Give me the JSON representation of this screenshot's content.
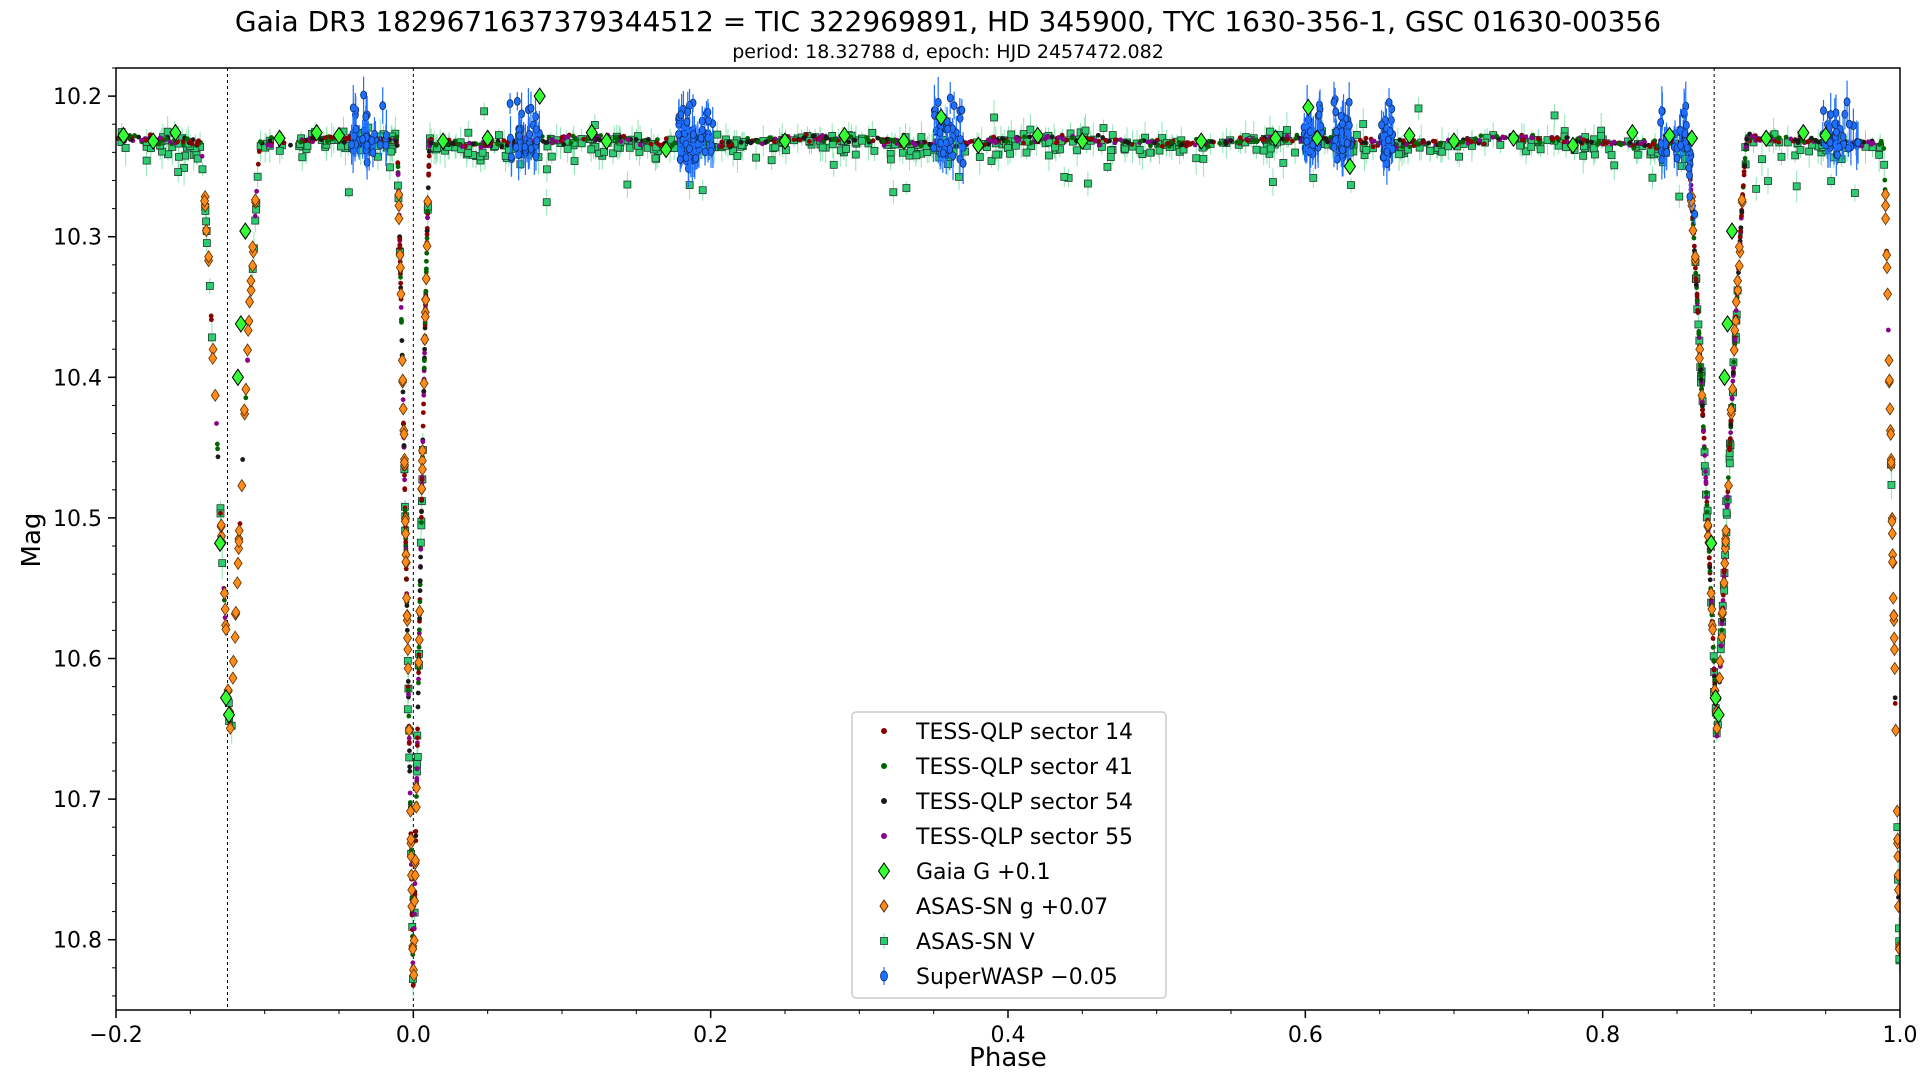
{
  "chart_data": {
    "type": "scatter",
    "title": "Gaia DR3 1829671637379344512 = TIC 322969891, HD 345900, TYC 1630-356-1, GSC 01630-00356",
    "subtitle": "period: 18.32788 d, epoch: HJD 2457472.082",
    "xlabel": "Phase",
    "ylabel": "Mag",
    "xlim": [
      -0.2,
      1.0
    ],
    "ylim": [
      10.85,
      10.18
    ],
    "y_inverted": true,
    "x_ticks": [
      -0.2,
      0.0,
      0.2,
      0.4,
      0.6,
      0.8,
      1.0
    ],
    "x_tick_labels": [
      "−0.2",
      "0.0",
      "0.2",
      "0.4",
      "0.6",
      "0.8",
      "1.0"
    ],
    "y_ticks": [
      10.2,
      10.3,
      10.4,
      10.5,
      10.6,
      10.7,
      10.8
    ],
    "y_tick_labels": [
      "10.2",
      "10.3",
      "10.4",
      "10.5",
      "10.6",
      "10.7",
      "10.8"
    ],
    "vertical_lines": [
      -0.125,
      0.0,
      0.875,
      1.0
    ],
    "grid": false,
    "legend_position": "bottom-center",
    "eclipses": {
      "baseline": 10.232,
      "primary": {
        "phase": 0.0,
        "depth_mag": 10.835,
        "half_width": 0.011
      },
      "secondary": {
        "phase": 0.877,
        "depth_mag": 10.66,
        "half_width": 0.02
      }
    },
    "series": [
      {
        "name": "TESS-QLP sector 14",
        "marker": "dot",
        "color": "#8b0000"
      },
      {
        "name": "TESS-QLP sector 41",
        "marker": "dot",
        "color": "#006400"
      },
      {
        "name": "TESS-QLP sector 54",
        "marker": "dot",
        "color": "#1a1a1a"
      },
      {
        "name": "TESS-QLP sector 55",
        "marker": "dot",
        "color": "#8b008b"
      },
      {
        "name": "Gaia G +0.1",
        "marker": "diamond",
        "color": "#33ff33",
        "points": [
          [
            -0.195,
            10.228
          ],
          [
            -0.175,
            10.232
          ],
          [
            -0.16,
            10.226
          ],
          [
            -0.13,
            10.518
          ],
          [
            -0.126,
            10.628
          ],
          [
            -0.124,
            10.64
          ],
          [
            -0.118,
            10.4
          ],
          [
            -0.116,
            10.362
          ],
          [
            -0.113,
            10.296
          ],
          [
            -0.09,
            10.23
          ],
          [
            -0.065,
            10.226
          ],
          [
            -0.05,
            10.228
          ],
          [
            0.02,
            10.232
          ],
          [
            0.05,
            10.23
          ],
          [
            0.085,
            10.2
          ],
          [
            0.12,
            10.226
          ],
          [
            0.13,
            10.232
          ],
          [
            0.17,
            10.238
          ],
          [
            0.25,
            10.232
          ],
          [
            0.29,
            10.228
          ],
          [
            0.33,
            10.232
          ],
          [
            0.355,
            10.215
          ],
          [
            0.38,
            10.235
          ],
          [
            0.42,
            10.228
          ],
          [
            0.45,
            10.232
          ],
          [
            0.53,
            10.232
          ],
          [
            0.58,
            10.23
          ],
          [
            0.602,
            10.208
          ],
          [
            0.608,
            10.23
          ],
          [
            0.63,
            10.25
          ],
          [
            0.67,
            10.228
          ],
          [
            0.7,
            10.232
          ],
          [
            0.74,
            10.23
          ],
          [
            0.78,
            10.235
          ],
          [
            0.82,
            10.226
          ],
          [
            0.845,
            10.228
          ],
          [
            0.86,
            10.23
          ],
          [
            0.873,
            10.518
          ],
          [
            0.876,
            10.628
          ],
          [
            0.878,
            10.64
          ],
          [
            0.882,
            10.4
          ],
          [
            0.884,
            10.362
          ],
          [
            0.887,
            10.296
          ],
          [
            0.91,
            10.23
          ],
          [
            0.935,
            10.226
          ],
          [
            0.95,
            10.228
          ]
        ]
      },
      {
        "name": "ASAS-SN g +0.07",
        "marker": "diamond",
        "color": "#ff8c1a"
      },
      {
        "name": "ASAS-SN V",
        "marker": "square",
        "color": "#2ecc71"
      },
      {
        "name": "SuperWASP −0.05",
        "marker": "dot-errorbar",
        "color": "#1f6fff"
      }
    ]
  }
}
